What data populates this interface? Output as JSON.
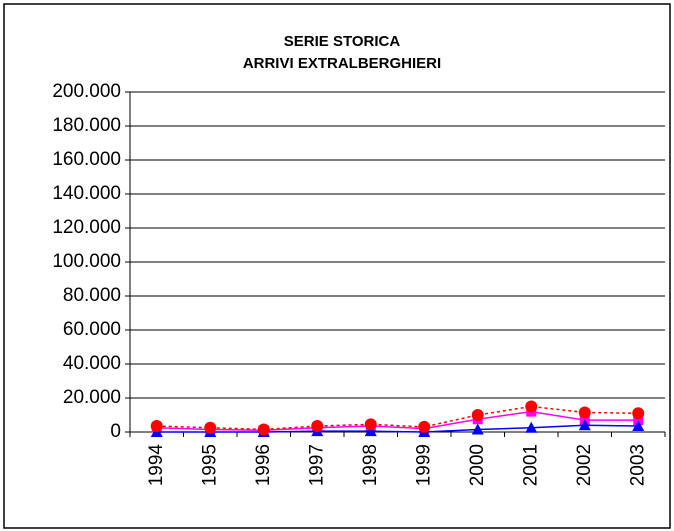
{
  "chart_data": {
    "type": "line",
    "title": [
      "SERIE STORICA",
      "ARRIVI EXTRALBERGHIERI"
    ],
    "categories": [
      "1994",
      "1995",
      "1996",
      "1997",
      "1998",
      "1999",
      "2000",
      "2001",
      "2002",
      "2003"
    ],
    "series": [
      {
        "color": "#ff00ff",
        "marker": "square",
        "dash": "solid",
        "values": [
          2500,
          1500,
          1000,
          2500,
          3500,
          2000,
          7500,
          12000,
          7000,
          7000
        ]
      },
      {
        "color": "#0000ff",
        "marker": "triangle",
        "dash": "solid",
        "values": [
          0,
          0,
          0,
          500,
          500,
          0,
          1500,
          2500,
          4000,
          3500
        ]
      },
      {
        "color": "#ff0000",
        "marker": "circle",
        "dash": "dotted",
        "values": [
          3500,
          2500,
          1500,
          3500,
          4500,
          3000,
          10000,
          15000,
          11500,
          11000
        ]
      }
    ],
    "ylim": [
      0,
      200000
    ],
    "yticks": [
      0,
      {
        "value": 20000,
        "label": "20.000"
      },
      {
        "value": 40000,
        "label": "40.000"
      },
      {
        "value": 60000,
        "label": "60.000"
      },
      {
        "value": 80000,
        "label": "80.000"
      },
      {
        "value": 100000,
        "label": "100.000"
      },
      {
        "value": 120000,
        "label": "120.000"
      },
      {
        "value": 140000,
        "label": "140.000"
      },
      {
        "value": 160000,
        "label": "160.000"
      },
      {
        "value": 180000,
        "label": "180.000"
      },
      {
        "value": 200000,
        "label": "200.000"
      }
    ],
    "grid": true
  }
}
